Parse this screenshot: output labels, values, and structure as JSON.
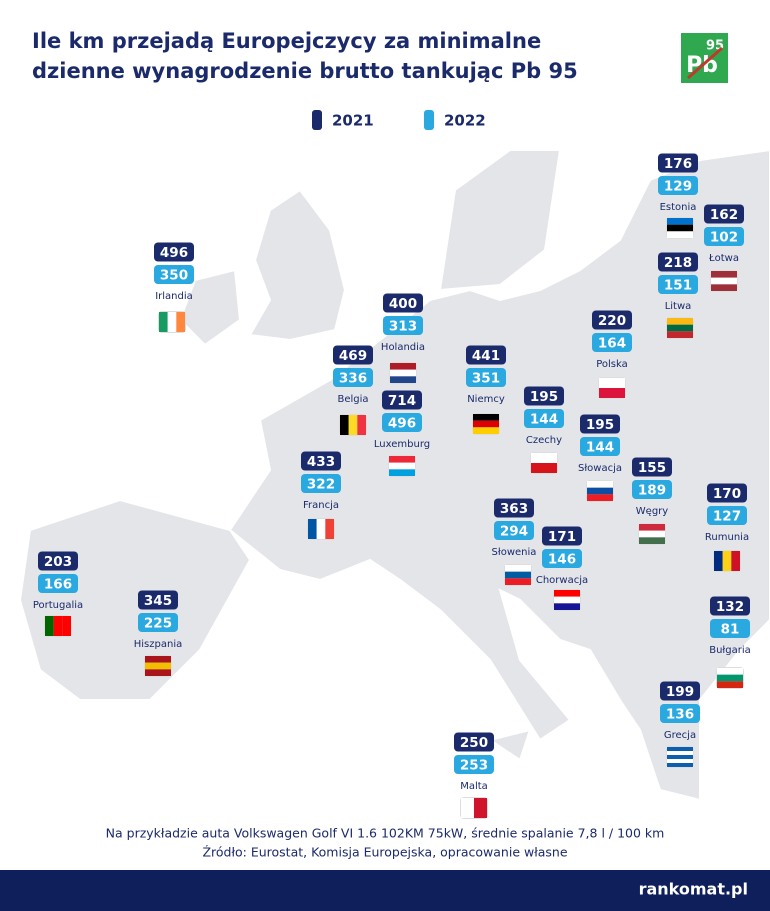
{
  "header": {
    "title_line1": "Ile km przejadą Europejczycy za minimalne",
    "title_line2": "dzienne wynagrodzenie brutto tankując Pb 95",
    "logo": {
      "top": "95",
      "main": "Pb"
    }
  },
  "legend": [
    {
      "label": "2021",
      "color": "#1b2a6b"
    },
    {
      "label": "2022",
      "color": "#2aa8e0"
    }
  ],
  "countries": [
    {
      "name": "Estonia",
      "values": [
        176,
        129
      ]
    },
    {
      "name": "Łotwa",
      "values": [
        162,
        102
      ]
    },
    {
      "name": "Litwa",
      "values": [
        218,
        151
      ]
    },
    {
      "name": "Irlandia",
      "values": [
        496,
        350
      ]
    },
    {
      "name": "Holandia",
      "values": [
        400,
        313
      ]
    },
    {
      "name": "Belgia",
      "values": [
        469,
        336
      ]
    },
    {
      "name": "Luxemburg",
      "values": [
        714,
        496
      ]
    },
    {
      "name": "Niemcy",
      "values": [
        441,
        351
      ]
    },
    {
      "name": "Polska",
      "values": [
        220,
        164
      ]
    },
    {
      "name": "Czechy",
      "values": [
        195,
        144
      ]
    },
    {
      "name": "Słowacja",
      "values": [
        195,
        144
      ]
    },
    {
      "name": "Węgry",
      "values": [
        155,
        189
      ]
    },
    {
      "name": "Rumunia",
      "values": [
        170,
        127
      ]
    },
    {
      "name": "Francja",
      "values": [
        433,
        322
      ]
    },
    {
      "name": "Słowenia",
      "values": [
        363,
        294
      ]
    },
    {
      "name": "Chorwacja",
      "values": [
        171,
        146
      ]
    },
    {
      "name": "Portugalia",
      "values": [
        203,
        166
      ]
    },
    {
      "name": "Hiszpania",
      "values": [
        345,
        225
      ]
    },
    {
      "name": "Bułgaria",
      "values": [
        132,
        81
      ]
    },
    {
      "name": "Grecja",
      "values": [
        199,
        136
      ]
    },
    {
      "name": "Malta",
      "values": [
        250,
        253
      ]
    }
  ],
  "footer": {
    "note": "Na przykładzie auta Volkswagen Golf VI 1.6 102KM 75kW, średnie spalanie 7,8 l / 100 km",
    "source": "Źródło: Eurostat, Komisja Europejska, opracowanie własne"
  },
  "brand": "rankomat.pl"
}
